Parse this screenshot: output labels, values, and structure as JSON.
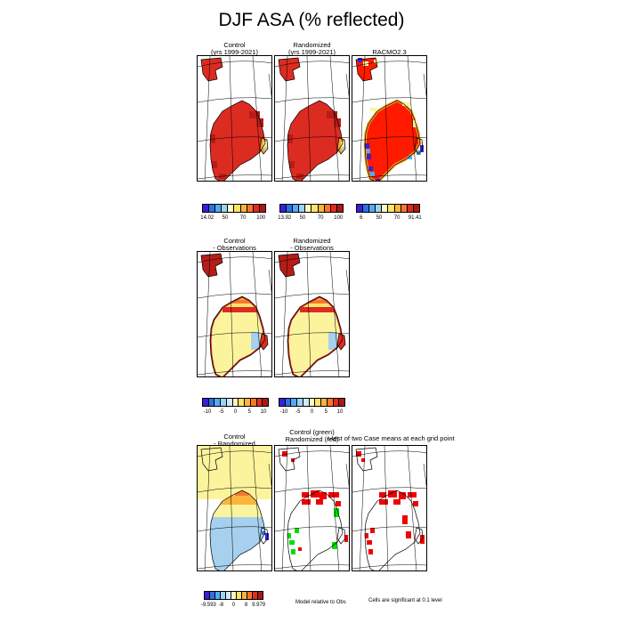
{
  "title": "DJF ASA (% reflected)",
  "rows": [
    {
      "panels": [
        {
          "title": [
            "Control",
            "(yrs 1999-2021)"
          ],
          "fill": "red"
        },
        {
          "title": [
            "Randomized",
            "(yrs 1999-2021)"
          ],
          "fill": "red"
        },
        {
          "title": [
            "RACMO2.3"
          ],
          "fill": "racmo"
        }
      ],
      "colorbars": [
        {
          "ticks": [
            "14.02",
            "50",
            "70",
            "100"
          ]
        },
        {
          "ticks": [
            "13.92",
            "50",
            "70",
            "100"
          ]
        },
        {
          "ticks": [
            "6",
            "50",
            "70",
            "91.41"
          ]
        }
      ]
    },
    {
      "panels": [
        {
          "title": [
            "Control",
            "- Observations"
          ],
          "fill": "diff"
        },
        {
          "title": [
            "Randomized",
            "- Observations"
          ],
          "fill": "diff"
        }
      ],
      "colorbars": [
        {
          "ticks": [
            "-10",
            "-5",
            "0",
            "5",
            "10"
          ]
        },
        {
          "ticks": [
            "-10",
            "-5",
            "0",
            "5",
            "10"
          ]
        }
      ]
    },
    {
      "panels": [
        {
          "title": [
            "Control",
            "- Randomized"
          ],
          "fill": "cr"
        },
        {
          "title": [
            "Control (green)",
            "Randomized (red)"
          ],
          "fill": "cells"
        },
        {
          "title": [
            ""
          ],
          "fill": "cells2"
        }
      ],
      "colorbars": [
        {
          "ticks": [
            "-9.593",
            "-8",
            "0",
            "8",
            "9.979"
          ]
        }
      ],
      "ttest_title": "t-test of two Case means at each grid point",
      "note_left": "Model relative to Obs",
      "note_right": "Cells are significant at 0.1 level"
    }
  ],
  "colors": {
    "full_scale": [
      "#3a1fd6",
      "#2f6fe8",
      "#56a8f0",
      "#9ad2f5",
      "#fefabe",
      "#fde36a",
      "#fbb43c",
      "#f7772c",
      "#e42a1f",
      "#a81a16"
    ],
    "diff_scale": [
      "#3a1fd6",
      "#2f6fe8",
      "#56a8f0",
      "#9ad2f5",
      "#cfe9f7",
      "#fefabe",
      "#fde36a",
      "#fbb43c",
      "#f7772c",
      "#e42a1f",
      "#a81a16"
    ],
    "red": "#dc2c22",
    "dark_red": "#b61d18",
    "bright_red": "#ff1a00",
    "orange": "#f7a82a",
    "yellow": "#fcf49c",
    "light_blue": "#a6d0ee",
    "green": "#00e000",
    "cell_red": "#f00000"
  }
}
